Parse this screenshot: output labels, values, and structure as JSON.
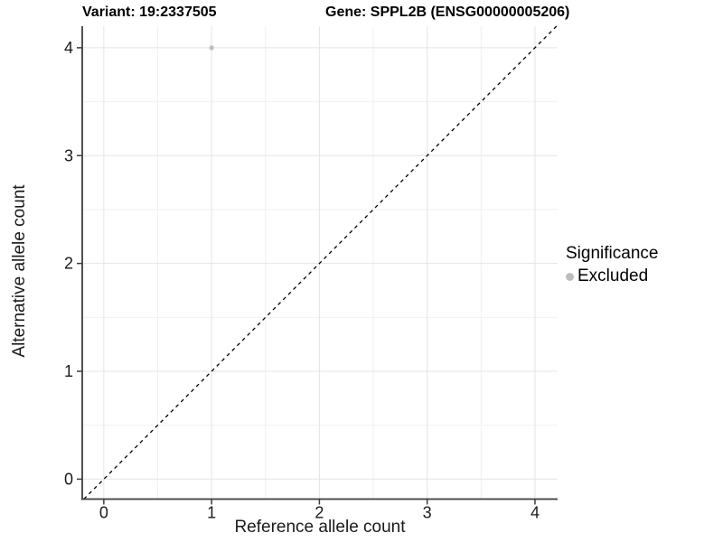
{
  "chart_data": {
    "type": "scatter",
    "title_left": "Variant: 19:2337505",
    "title_right": "Gene: SPPL2B (ENSG00000005206)",
    "xlabel": "Reference allele count",
    "ylabel": "Alternative allele count",
    "xlim": [
      -0.2,
      4.21
    ],
    "ylim": [
      -0.185,
      4.2
    ],
    "x_ticks": [
      0,
      1,
      2,
      3,
      4
    ],
    "y_ticks": [
      0,
      1,
      2,
      3,
      4
    ],
    "x_minor_ticks": [
      0.5,
      1.5,
      2.5,
      3.5
    ],
    "y_minor_ticks": [
      0.5,
      1.5,
      2.5,
      3.5
    ],
    "grid": true,
    "points": [
      {
        "x": 1,
        "y": 4,
        "significance": "Excluded"
      }
    ],
    "reference_line": {
      "type": "identity",
      "style": "dashed",
      "label": "y = x"
    },
    "legend": {
      "title": "Significance",
      "position": "right",
      "entries": [
        {
          "label": "Excluded",
          "color": "#bdbdbd",
          "marker": "circle"
        }
      ]
    },
    "colors": {
      "point": "#bdbdbd",
      "grid_major": "#e4e4e4",
      "grid_minor": "#f0f0f0",
      "axis_line": "#3c3c3c",
      "tick_text": "#1a1a1a",
      "dashed_line": "#000000",
      "background": "#ffffff"
    }
  }
}
